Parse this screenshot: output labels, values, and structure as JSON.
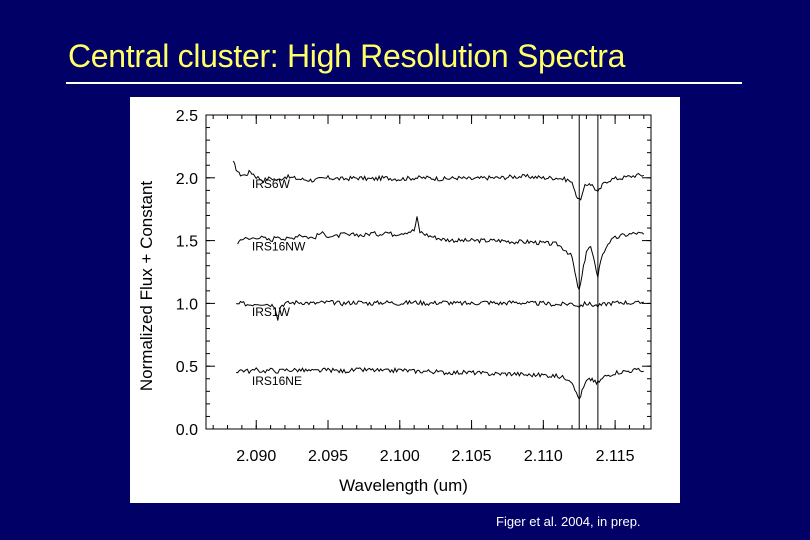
{
  "slide": {
    "title": "Central cluster: High Resolution Spectra",
    "citation": "Figer et al. 2004, in prep."
  },
  "colors": {
    "background": "#000066",
    "title": "#ffff66",
    "rule": "#ffffff",
    "plot_bg": "#ffffff",
    "ink": "#000000"
  },
  "chart_data": {
    "type": "line",
    "title": "",
    "xlabel": "Wavelength (um)",
    "ylabel": "Normalized Flux + Constant",
    "xlim": [
      2.0865,
      2.1175
    ],
    "ylim": [
      0.0,
      2.5
    ],
    "xticks": [
      2.09,
      2.095,
      2.1,
      2.105,
      2.11,
      2.115
    ],
    "xtick_labels": [
      "2.090",
      "2.095",
      "2.100",
      "2.105",
      "2.110",
      "2.115"
    ],
    "yticks": [
      0.0,
      0.5,
      1.0,
      1.5,
      2.0,
      2.5
    ],
    "ytick_labels": [
      "0.0",
      "0.5",
      "1.0",
      "1.5",
      "2.0",
      "2.5"
    ],
    "vertical_lines": [
      2.1125,
      2.1138
    ],
    "grid": false,
    "series": [
      {
        "name": "IRS6W",
        "label_at": [
          2.0897,
          1.92
        ],
        "points": [
          [
            2.0884,
            2.12
          ],
          [
            2.0888,
            2.03
          ],
          [
            2.0892,
            2.02
          ],
          [
            2.0896,
            2.05
          ],
          [
            2.09,
            2.01
          ],
          [
            2.0905,
            1.98
          ],
          [
            2.091,
            2.0
          ],
          [
            2.0915,
            1.98
          ],
          [
            2.092,
            2.01
          ],
          [
            2.093,
            1.99
          ],
          [
            2.094,
            1.98
          ],
          [
            2.095,
            2.0
          ],
          [
            2.096,
            1.99
          ],
          [
            2.097,
            2.0
          ],
          [
            2.098,
            1.99
          ],
          [
            2.099,
            2.0
          ],
          [
            2.1,
            1.99
          ],
          [
            2.101,
            2.0
          ],
          [
            2.102,
            2.0
          ],
          [
            2.103,
            1.99
          ],
          [
            2.104,
            2.0
          ],
          [
            2.105,
            1.99
          ],
          [
            2.106,
            2.0
          ],
          [
            2.107,
            2.0
          ],
          [
            2.108,
            2.01
          ],
          [
            2.109,
            2.01
          ],
          [
            2.11,
            2.0
          ],
          [
            2.111,
            2.0
          ],
          [
            2.1118,
            1.98
          ],
          [
            2.1121,
            1.94
          ],
          [
            2.1123,
            1.86
          ],
          [
            2.1125,
            1.82
          ],
          [
            2.1127,
            1.86
          ],
          [
            2.1129,
            1.93
          ],
          [
            2.1132,
            1.96
          ],
          [
            2.1135,
            1.93
          ],
          [
            2.1138,
            1.88
          ],
          [
            2.114,
            1.92
          ],
          [
            2.1143,
            1.97
          ],
          [
            2.1148,
            1.99
          ],
          [
            2.1155,
            2.0
          ],
          [
            2.116,
            2.01
          ],
          [
            2.1165,
            2.02
          ],
          [
            2.117,
            2.02
          ]
        ]
      },
      {
        "name": "IRS16NW",
        "label_at": [
          2.0897,
          1.42
        ],
        "points": [
          [
            2.0887,
            1.48
          ],
          [
            2.089,
            1.52
          ],
          [
            2.0895,
            1.51
          ],
          [
            2.09,
            1.53
          ],
          [
            2.0905,
            1.52
          ],
          [
            2.091,
            1.5
          ],
          [
            2.0915,
            1.54
          ],
          [
            2.092,
            1.51
          ],
          [
            2.0925,
            1.52
          ],
          [
            2.093,
            1.55
          ],
          [
            2.0935,
            1.53
          ],
          [
            2.094,
            1.52
          ],
          [
            2.0945,
            1.56
          ],
          [
            2.095,
            1.54
          ],
          [
            2.0955,
            1.53
          ],
          [
            2.096,
            1.55
          ],
          [
            2.0965,
            1.54
          ],
          [
            2.097,
            1.55
          ],
          [
            2.0975,
            1.54
          ],
          [
            2.098,
            1.56
          ],
          [
            2.0985,
            1.55
          ],
          [
            2.099,
            1.57
          ],
          [
            2.0995,
            1.55
          ],
          [
            2.1,
            1.56
          ],
          [
            2.1005,
            1.57
          ],
          [
            2.101,
            1.58
          ],
          [
            2.1012,
            1.68
          ],
          [
            2.1014,
            1.57
          ],
          [
            2.102,
            1.54
          ],
          [
            2.103,
            1.51
          ],
          [
            2.104,
            1.5
          ],
          [
            2.105,
            1.5
          ],
          [
            2.106,
            1.5
          ],
          [
            2.107,
            1.5
          ],
          [
            2.108,
            1.49
          ],
          [
            2.109,
            1.49
          ],
          [
            2.11,
            1.48
          ],
          [
            2.111,
            1.47
          ],
          [
            2.1116,
            1.42
          ],
          [
            2.112,
            1.37
          ],
          [
            2.1123,
            1.18
          ],
          [
            2.1125,
            1.1
          ],
          [
            2.1127,
            1.22
          ],
          [
            2.113,
            1.42
          ],
          [
            2.1133,
            1.45
          ],
          [
            2.1136,
            1.3
          ],
          [
            2.1138,
            1.22
          ],
          [
            2.114,
            1.35
          ],
          [
            2.1145,
            1.48
          ],
          [
            2.115,
            1.52
          ],
          [
            2.1155,
            1.54
          ],
          [
            2.116,
            1.55
          ],
          [
            2.1165,
            1.56
          ],
          [
            2.117,
            1.55
          ]
        ]
      },
      {
        "name": "IRS1W",
        "label_at": [
          2.0897,
          0.9
        ],
        "points": [
          [
            2.0886,
            0.99
          ],
          [
            2.089,
            1.0
          ],
          [
            2.0895,
            0.99
          ],
          [
            2.09,
            1.0
          ],
          [
            2.0905,
            1.0
          ],
          [
            2.091,
            0.99
          ],
          [
            2.0913,
            0.98
          ],
          [
            2.0915,
            0.88
          ],
          [
            2.0917,
            0.98
          ],
          [
            2.092,
            1.0
          ],
          [
            2.093,
            1.01
          ],
          [
            2.094,
            1.0
          ],
          [
            2.095,
            1.01
          ],
          [
            2.096,
            1.0
          ],
          [
            2.097,
            1.01
          ],
          [
            2.098,
            1.0
          ],
          [
            2.099,
            1.01
          ],
          [
            2.1,
            1.0
          ],
          [
            2.101,
            1.01
          ],
          [
            2.102,
            1.0
          ],
          [
            2.103,
            1.01
          ],
          [
            2.104,
            1.0
          ],
          [
            2.105,
            1.0
          ],
          [
            2.106,
            1.01
          ],
          [
            2.107,
            1.0
          ],
          [
            2.108,
            1.01
          ],
          [
            2.109,
            1.0
          ],
          [
            2.11,
            1.0
          ],
          [
            2.111,
            0.99
          ],
          [
            2.112,
            1.0
          ],
          [
            2.1125,
            0.98
          ],
          [
            2.113,
            1.0
          ],
          [
            2.1138,
            0.98
          ],
          [
            2.1145,
            1.0
          ],
          [
            2.1155,
            1.01
          ],
          [
            2.1165,
            1.0
          ],
          [
            2.117,
            1.01
          ]
        ]
      },
      {
        "name": "IRS16NE",
        "label_at": [
          2.0897,
          0.35
        ],
        "points": [
          [
            2.0886,
            0.46
          ],
          [
            2.089,
            0.47
          ],
          [
            2.0895,
            0.46
          ],
          [
            2.09,
            0.47
          ],
          [
            2.0905,
            0.46
          ],
          [
            2.091,
            0.47
          ],
          [
            2.0915,
            0.46
          ],
          [
            2.092,
            0.47
          ],
          [
            2.093,
            0.47
          ],
          [
            2.094,
            0.46
          ],
          [
            2.095,
            0.47
          ],
          [
            2.096,
            0.46
          ],
          [
            2.097,
            0.47
          ],
          [
            2.098,
            0.47
          ],
          [
            2.099,
            0.46
          ],
          [
            2.1,
            0.47
          ],
          [
            2.101,
            0.46
          ],
          [
            2.102,
            0.46
          ],
          [
            2.103,
            0.45
          ],
          [
            2.104,
            0.45
          ],
          [
            2.105,
            0.45
          ],
          [
            2.106,
            0.44
          ],
          [
            2.107,
            0.44
          ],
          [
            2.108,
            0.44
          ],
          [
            2.109,
            0.43
          ],
          [
            2.11,
            0.43
          ],
          [
            2.111,
            0.42
          ],
          [
            2.1118,
            0.4
          ],
          [
            2.1121,
            0.36
          ],
          [
            2.1123,
            0.28
          ],
          [
            2.1125,
            0.24
          ],
          [
            2.1127,
            0.3
          ],
          [
            2.113,
            0.38
          ],
          [
            2.1134,
            0.4
          ],
          [
            2.1137,
            0.36
          ],
          [
            2.1139,
            0.38
          ],
          [
            2.1143,
            0.42
          ],
          [
            2.115,
            0.45
          ],
          [
            2.1158,
            0.46
          ],
          [
            2.1165,
            0.47
          ],
          [
            2.117,
            0.46
          ]
        ]
      }
    ]
  }
}
